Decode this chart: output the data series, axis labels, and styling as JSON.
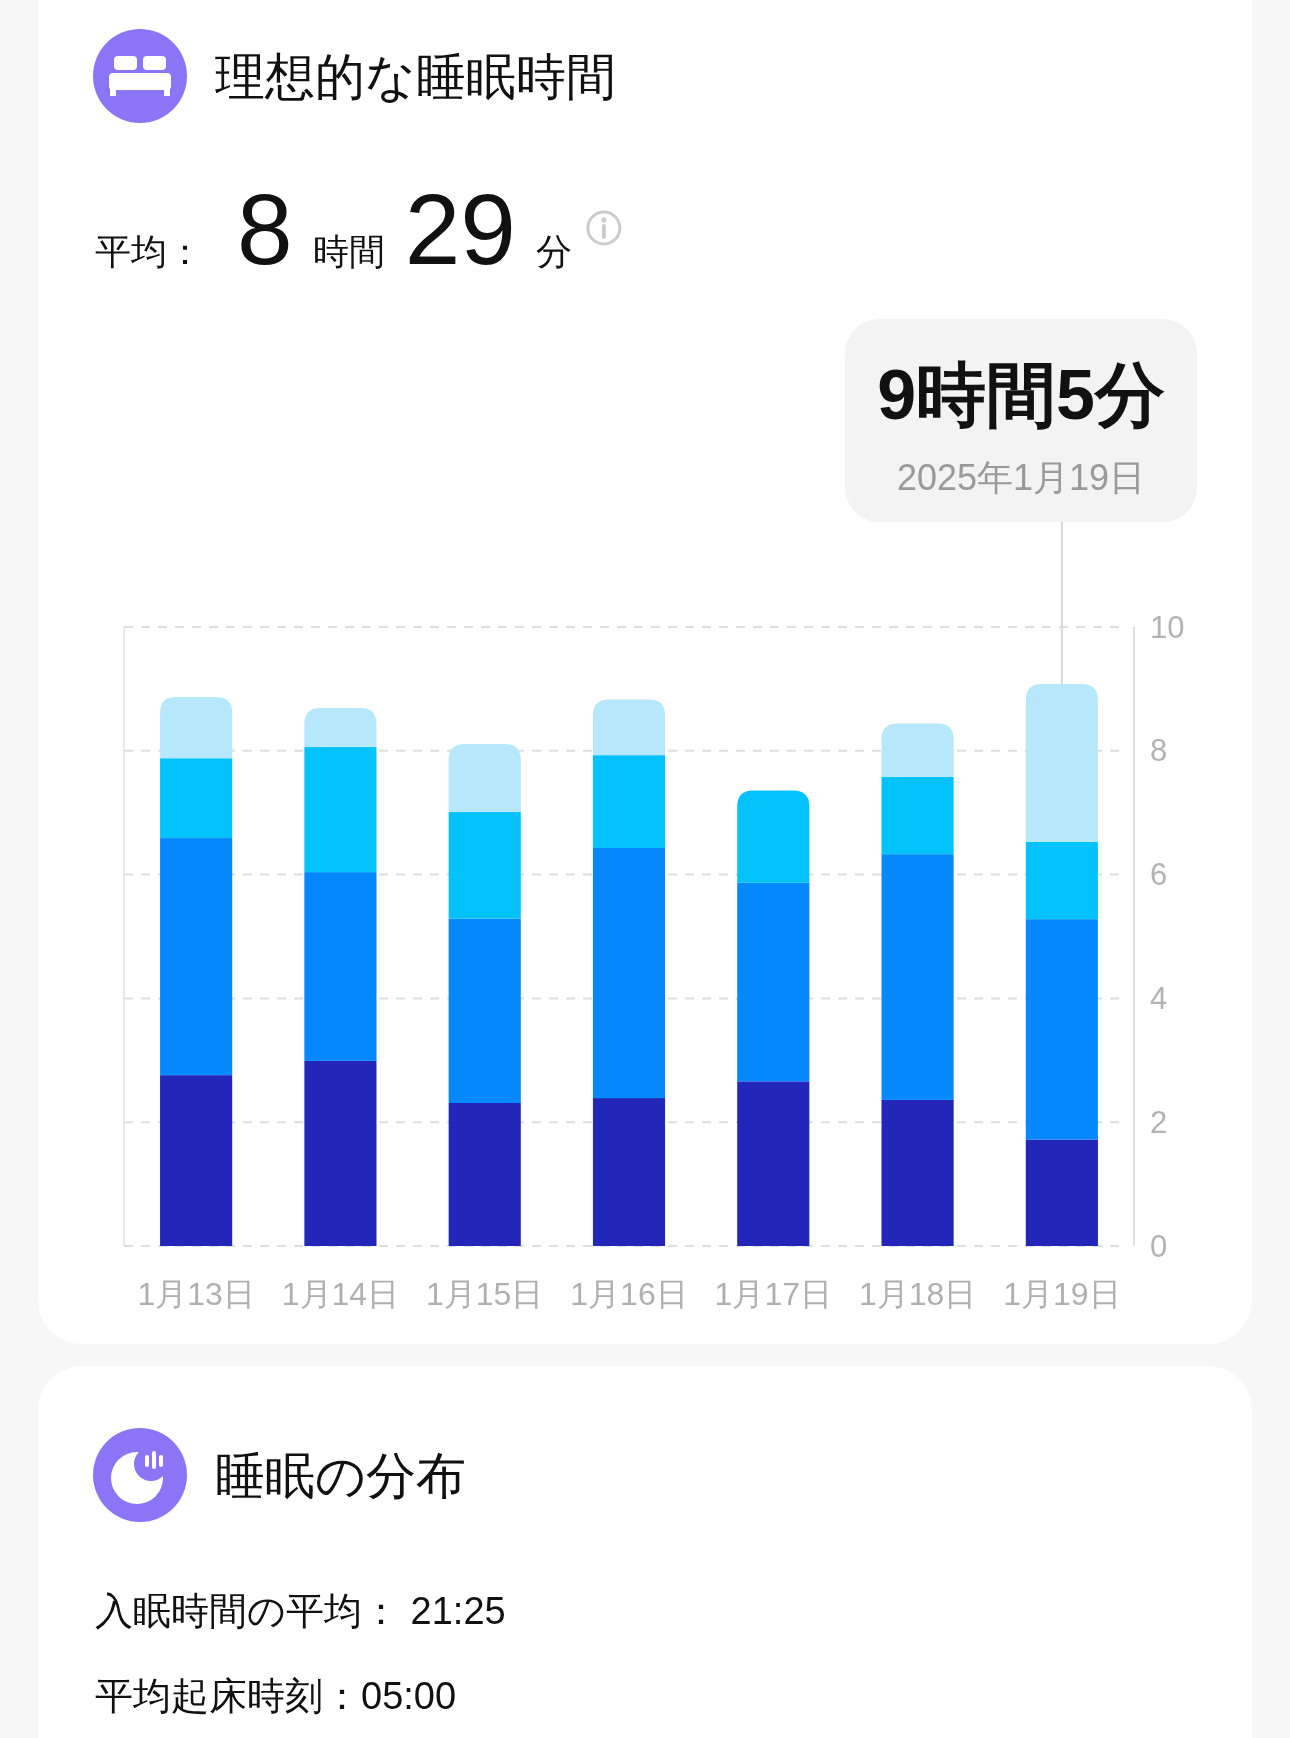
{
  "chart_data": [
    {
      "type": "bar",
      "title": "理想的な睡眠時間",
      "subtitle": "平均： 8 時間 29 分",
      "categories": [
        "1月13日",
        "1月14日",
        "1月15日",
        "1月16日",
        "1月17日",
        "1月18日",
        "1月19日"
      ],
      "stacked": true,
      "series": [
        {
          "color": "#2226b9",
          "values": [
            2.76,
            2.99,
            2.31,
            2.39,
            2.66,
            2.36,
            1.72
          ]
        },
        {
          "color": "#0488fc",
          "values": [
            3.83,
            3.05,
            2.98,
            4.04,
            3.21,
            3.97,
            3.56
          ]
        },
        {
          "color": "#04c3fc",
          "values": [
            1.29,
            2.02,
            1.72,
            1.5,
            1.49,
            1.25,
            1.25
          ]
        },
        {
          "color": "#b6e7fb",
          "values": [
            0.99,
            0.63,
            1.1,
            0.9,
            null,
            0.86,
            2.55
          ]
        }
      ],
      "ylim": [
        0,
        10
      ],
      "yticks": [
        0,
        2,
        4,
        6,
        8,
        10
      ],
      "grid": "y",
      "annotations": [
        {
          "text": "9時間5分",
          "x": "1月19日",
          "y": 9.08
        },
        {
          "text": "2025年1月19日",
          "x": "1月19日",
          "y": 9.08
        }
      ]
    },
    {
      "type": "other",
      "title": "睡眠の分布",
      "annotations": [
        "入眠時間の平均： 21:25",
        "平均起床時刻：05:00"
      ]
    }
  ]
}
